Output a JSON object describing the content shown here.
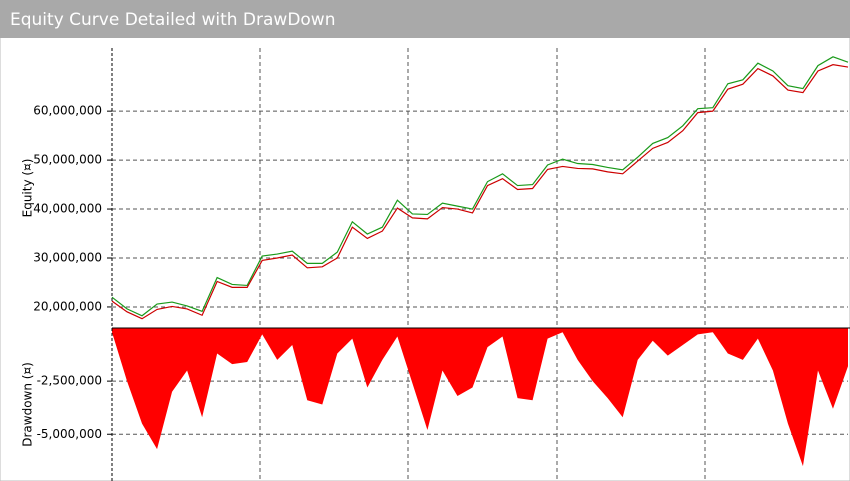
{
  "title": "Equity Curve Detailed with DrawDown",
  "chart_data": [
    {
      "type": "line",
      "y_label": "Equity (¤)",
      "ylim": [
        15700000,
        72900000
      ],
      "yticks": [
        {
          "value": 20000000,
          "label": "20,000,000"
        },
        {
          "value": 30000000,
          "label": "30,000,000"
        },
        {
          "value": 40000000,
          "label": "40,000,000"
        },
        {
          "value": 50000000,
          "label": "50,000,000"
        },
        {
          "value": 60000000,
          "label": "60,000,000"
        }
      ],
      "grid": true,
      "series": [
        {
          "color": "#1a9a1a",
          "values": [
            22000000,
            19600000,
            18200000,
            20600000,
            21000000,
            20200000,
            19100000,
            26000000,
            24600000,
            24400000,
            30400000,
            30800000,
            31400000,
            28900000,
            28900000,
            31200000,
            37400000,
            34900000,
            36300000,
            41800000,
            39000000,
            38900000,
            41200000,
            40600000,
            40000000,
            45600000,
            47200000,
            44800000,
            45000000,
            49000000,
            50200000,
            49300000,
            49100000,
            48500000,
            48000000,
            50600000,
            53400000,
            54600000,
            57000000,
            60500000,
            60700000,
            65600000,
            66400000,
            69800000,
            68200000,
            65200000,
            64600000,
            69300000,
            71100000,
            70000000
          ]
        },
        {
          "color": "#cc0000",
          "values": [
            21200000,
            19000000,
            17600000,
            19500000,
            20100000,
            19600000,
            18300000,
            25200000,
            24000000,
            24000000,
            29500000,
            30000000,
            30600000,
            28000000,
            28200000,
            30000000,
            36300000,
            34000000,
            35500000,
            40200000,
            38200000,
            38000000,
            40300000,
            40000000,
            39200000,
            44800000,
            46200000,
            44000000,
            44200000,
            48100000,
            48700000,
            48300000,
            48200000,
            47600000,
            47200000,
            49800000,
            52400000,
            53600000,
            56000000,
            59700000,
            60000000,
            64500000,
            65500000,
            68700000,
            67200000,
            64300000,
            63800000,
            68200000,
            69500000,
            69000000
          ]
        }
      ]
    },
    {
      "type": "area",
      "y_label": "Drawdown (¤)",
      "ylim": [
        -7200000,
        0
      ],
      "yticks": [
        {
          "value": -2500000,
          "label": "-2,500,000"
        },
        {
          "value": -5000000,
          "label": "-5,000,000"
        }
      ],
      "grid": true,
      "color": "#ff0000",
      "values": [
        -200000,
        -2500000,
        -4500000,
        -5700000,
        -3000000,
        -2000000,
        -4200000,
        -1200000,
        -1700000,
        -1600000,
        -300000,
        -1500000,
        -800000,
        -3400000,
        -3600000,
        -1200000,
        -500000,
        -2800000,
        -1500000,
        -400000,
        -2600000,
        -4800000,
        -2000000,
        -3200000,
        -2800000,
        -900000,
        -400000,
        -3300000,
        -3400000,
        -500000,
        -200000,
        -1500000,
        -2500000,
        -3300000,
        -4200000,
        -1500000,
        -600000,
        -1300000,
        -800000,
        -300000,
        -200000,
        -1200000,
        -1500000,
        -500000,
        -2000000,
        -4500000,
        -6500000,
        -2000000,
        -3800000,
        -1800000
      ]
    }
  ]
}
